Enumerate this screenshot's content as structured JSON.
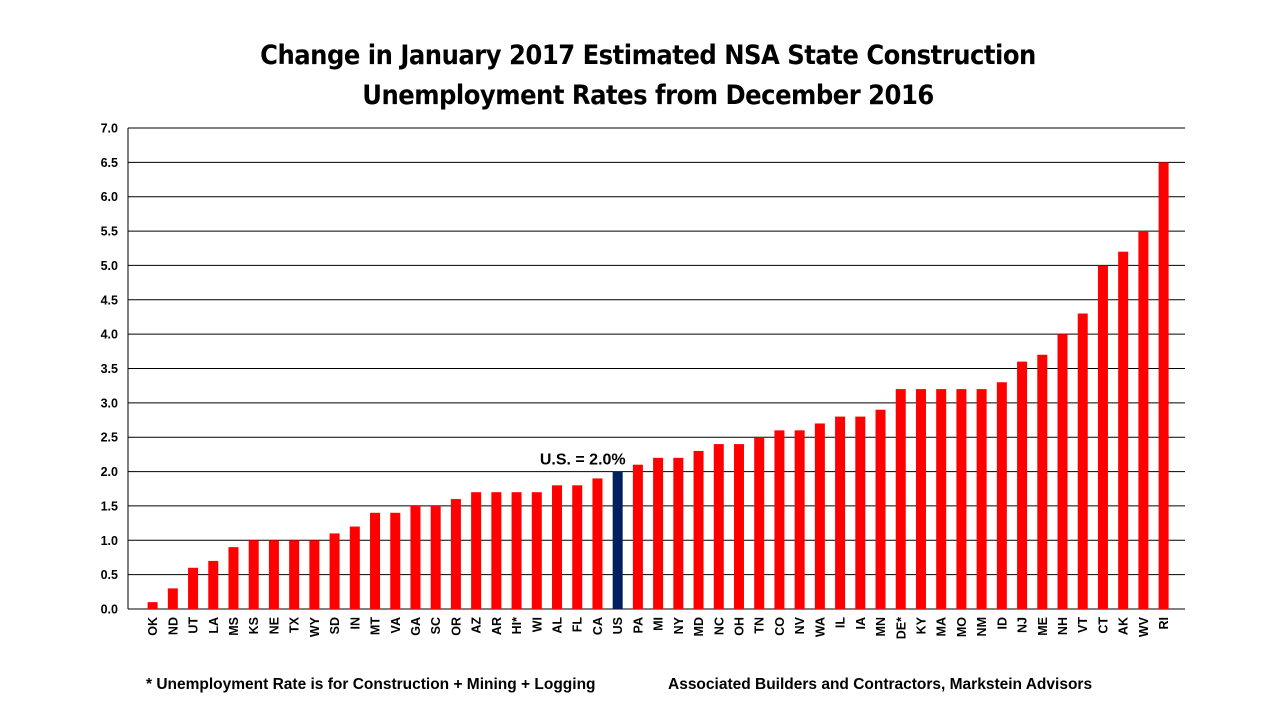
{
  "chart_data": {
    "type": "bar",
    "title_lines": [
      "Change in January 2017 Estimated NSA State Construction",
      "Unemployment Rates from December 2016"
    ],
    "categories": [
      "OK",
      "ND",
      "UT",
      "LA",
      "MS",
      "KS",
      "NE",
      "TX",
      "WY",
      "SD",
      "IN",
      "MT",
      "VA",
      "GA",
      "SC",
      "OR",
      "AZ",
      "AR",
      "HI*",
      "WI",
      "AL",
      "FL",
      "CA",
      "US",
      "PA",
      "MI",
      "NY",
      "MD",
      "NC",
      "OH",
      "TN",
      "CO",
      "NV",
      "WA",
      "IL",
      "IA",
      "MN",
      "DE*",
      "KY",
      "MA",
      "MO",
      "NM",
      "ID",
      "NJ",
      "ME",
      "NH",
      "VT",
      "CT",
      "AK",
      "WV",
      "RI"
    ],
    "values": [
      0.1,
      0.3,
      0.6,
      0.7,
      0.9,
      1.0,
      1.0,
      1.0,
      1.0,
      1.1,
      1.2,
      1.4,
      1.4,
      1.5,
      1.5,
      1.6,
      1.7,
      1.7,
      1.7,
      1.7,
      1.8,
      1.8,
      1.9,
      2.0,
      2.1,
      2.2,
      2.2,
      2.3,
      2.4,
      2.4,
      2.5,
      2.6,
      2.6,
      2.7,
      2.8,
      2.8,
      2.9,
      3.2,
      3.2,
      3.2,
      3.2,
      3.2,
      3.3,
      3.6,
      3.7,
      4.0,
      4.3,
      5.0,
      5.2,
      5.5,
      6.5
    ],
    "highlight_category": "US",
    "annotation": "U.S. = 2.0%",
    "ylim": [
      0,
      7.0
    ],
    "yticks": [
      "0.0",
      "0.5",
      "1.0",
      "1.5",
      "2.0",
      "2.5",
      "3.0",
      "3.5",
      "4.0",
      "4.5",
      "5.0",
      "5.5",
      "6.0",
      "6.5",
      "7.0"
    ],
    "grid": true,
    "colors": {
      "bar": "#ff0000",
      "highlight": "#002060"
    }
  },
  "footnotes": {
    "left": "* Unemployment Rate is for Construction + Mining + Logging",
    "right": "Associated Builders and Contractors, Markstein Advisors"
  }
}
